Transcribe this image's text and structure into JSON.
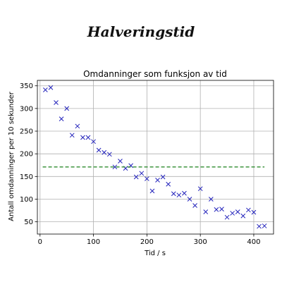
{
  "page": {
    "title": "Halveringstid"
  },
  "chart_data": {
    "type": "scatter",
    "title": "Omdanninger som funksjon av tid",
    "xlabel": "Tid / s",
    "ylabel": "Antall omdanninger per 10 sekunder",
    "xlim": [
      -5,
      437
    ],
    "ylim": [
      23,
      362
    ],
    "xticks": [
      0,
      100,
      200,
      300,
      400
    ],
    "yticks": [
      50,
      100,
      150,
      200,
      250,
      300,
      350
    ],
    "grid": true,
    "series": [
      {
        "marker": "x",
        "color": "#2222bb",
        "points": [
          [
            10,
            341
          ],
          [
            20,
            346
          ],
          [
            30,
            313
          ],
          [
            40,
            277
          ],
          [
            50,
            300
          ],
          [
            60,
            241
          ],
          [
            70,
            261
          ],
          [
            80,
            236
          ],
          [
            90,
            236
          ],
          [
            100,
            227
          ],
          [
            110,
            208
          ],
          [
            120,
            203
          ],
          [
            130,
            199
          ],
          [
            140,
            171
          ],
          [
            150,
            184
          ],
          [
            160,
            168
          ],
          [
            170,
            174
          ],
          [
            180,
            149
          ],
          [
            190,
            157
          ],
          [
            200,
            145
          ],
          [
            210,
            118
          ],
          [
            220,
            142
          ],
          [
            230,
            149
          ],
          [
            240,
            133
          ],
          [
            250,
            112
          ],
          [
            260,
            109
          ],
          [
            270,
            113
          ],
          [
            280,
            100
          ],
          [
            290,
            86
          ],
          [
            300,
            123
          ],
          [
            310,
            72
          ],
          [
            320,
            100
          ],
          [
            330,
            77
          ],
          [
            340,
            78
          ],
          [
            350,
            60
          ],
          [
            360,
            69
          ],
          [
            370,
            72
          ],
          [
            380,
            63
          ],
          [
            390,
            76
          ],
          [
            400,
            71
          ],
          [
            410,
            40
          ],
          [
            420,
            41
          ]
        ]
      },
      {
        "style": "dashed",
        "color": "#2e8b2e",
        "points": [
          [
            5,
            171
          ],
          [
            420,
            171
          ]
        ]
      }
    ]
  }
}
